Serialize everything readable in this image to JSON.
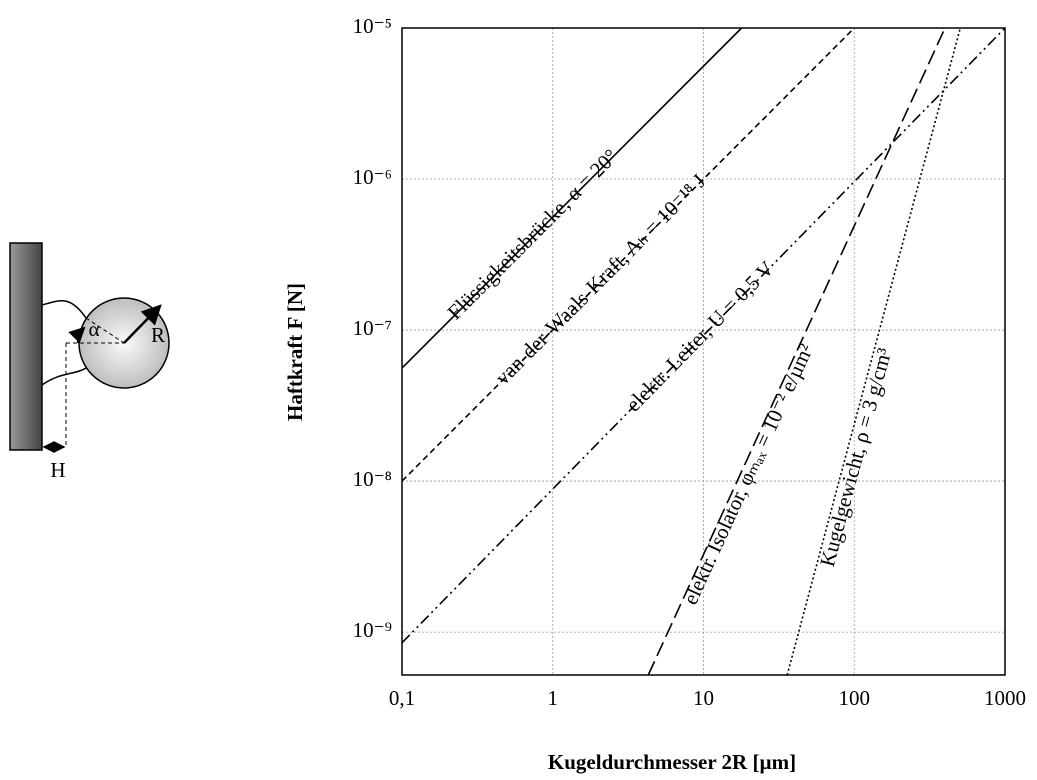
{
  "chart_data": {
    "type": "line",
    "xlabel": "Kugeldurchmesser 2R [µm]",
    "ylabel": "Haftkraft  F [N]",
    "xscale": "log",
    "yscale": "log",
    "grid": true,
    "xlim": [
      0.1,
      1000
    ],
    "ylim": [
      5.2e-10,
      1e-05
    ],
    "xticks": [
      {
        "value": 0.1,
        "label": "0,1"
      },
      1,
      10,
      100,
      1000
    ],
    "yticks": [
      {
        "value": 1e-09,
        "label": "10⁻⁹"
      },
      {
        "value": 1e-08,
        "label": "10⁻⁸"
      },
      {
        "value": 1e-07,
        "label": "10⁻⁷"
      },
      {
        "value": 1e-06,
        "label": "10⁻⁶"
      },
      {
        "value": 1e-05,
        "label": "10⁻⁵"
      }
    ],
    "series": [
      {
        "name": "Flüssigkeitsbrücke, α = 20°",
        "color": "#000000",
        "style": "solid",
        "x": [
          0.1,
          17.9
        ],
        "values": [
          5.6e-08,
          1e-05
        ]
      },
      {
        "name": "van-der-Waals-Kraft, Aₕ = 10⁻¹⁸ J",
        "color": "#000000",
        "style": "dashed",
        "x": [
          0.1,
          100
        ],
        "values": [
          1e-08,
          1e-05
        ]
      },
      {
        "name": "elektr. Leiter, U = 0,5 V",
        "color": "#000000",
        "style": "dashdotdot",
        "x": [
          0.1,
          1000
        ],
        "values": [
          8.5e-10,
          1e-05
        ]
      },
      {
        "name": "elektr. Isolator, φₘₐₓ = 10⁻² e/µm²",
        "color": "#000000",
        "style": "longdash",
        "x": [
          4.3,
          400
        ],
        "values": [
          5.2e-10,
          1e-05
        ]
      },
      {
        "name": "Kugelgewicht, ρ = 3 g/cm³",
        "color": "#000000",
        "style": "dotted",
        "x": [
          35.9,
          505
        ],
        "values": [
          5.2e-10,
          1e-05
        ]
      }
    ]
  },
  "diagram": {
    "labels": [
      "α",
      "R",
      "H"
    ]
  }
}
